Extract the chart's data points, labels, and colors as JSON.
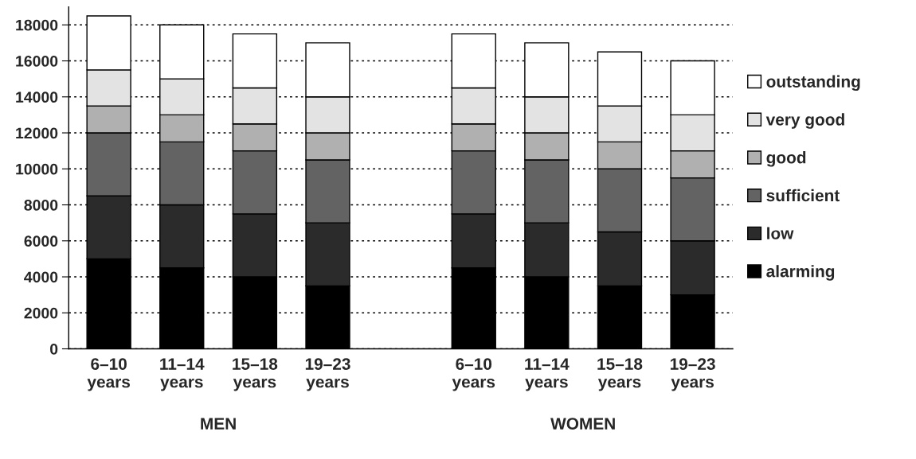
{
  "chart_data": {
    "type": "bar",
    "stacked": true,
    "categories": [
      "6–10\nyears",
      "11–14\nyears",
      "15–18\nyears",
      "19–23\nyears",
      null,
      "6–10\nyears",
      "11–14\nyears",
      "15–18\nyears",
      "19–23\nyears"
    ],
    "series": [
      {
        "name": "alarming",
        "color": "#000000",
        "values": [
          5000,
          4500,
          4000,
          3500,
          null,
          4500,
          4000,
          3500,
          3000
        ]
      },
      {
        "name": "low",
        "color": "#2b2b2b",
        "values": [
          3500,
          3500,
          3500,
          3500,
          null,
          3000,
          3000,
          3000,
          3000
        ]
      },
      {
        "name": "sufficient",
        "color": "#636363",
        "values": [
          3500,
          3500,
          3500,
          3500,
          null,
          3500,
          3500,
          3500,
          3500
        ]
      },
      {
        "name": "good",
        "color": "#b0b0b0",
        "values": [
          1500,
          1500,
          1500,
          1500,
          null,
          1500,
          1500,
          1500,
          1500
        ]
      },
      {
        "name": "very good",
        "color": "#e3e3e3",
        "values": [
          2000,
          2000,
          2000,
          2000,
          null,
          2000,
          2000,
          2000,
          2000
        ]
      },
      {
        "name": "outstanding",
        "color": "#ffffff",
        "values": [
          3000,
          3000,
          3000,
          3000,
          null,
          3000,
          3000,
          3000,
          3000
        ]
      }
    ],
    "ylim": [
      0,
      19000
    ],
    "yticks": [
      0,
      2000,
      4000,
      6000,
      8000,
      10000,
      12000,
      14000,
      16000,
      18000
    ],
    "grid": "y",
    "legend": "right",
    "annotations": [
      "MEN",
      "WOMEN"
    ]
  }
}
